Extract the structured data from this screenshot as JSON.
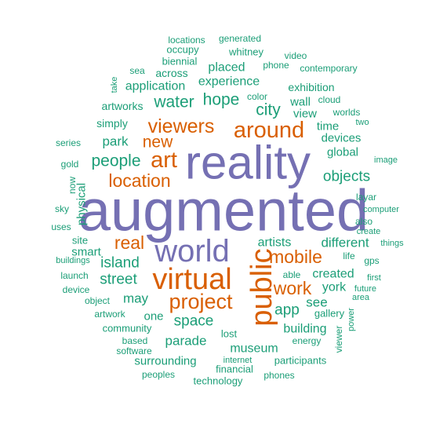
{
  "palette": {
    "purple": "#7570b3",
    "orange": "#d95f02",
    "teal": "#1b9e77"
  },
  "words": [
    {
      "text": "augmented",
      "color": "purple"
    },
    {
      "text": "reality",
      "color": "purple"
    },
    {
      "text": "world",
      "color": "purple"
    },
    {
      "text": "virtual",
      "color": "orange"
    },
    {
      "text": "public",
      "color": "orange"
    },
    {
      "text": "around",
      "color": "orange"
    },
    {
      "text": "viewers",
      "color": "orange"
    },
    {
      "text": "art",
      "color": "orange"
    },
    {
      "text": "new",
      "color": "orange"
    },
    {
      "text": "location",
      "color": "orange"
    },
    {
      "text": "project",
      "color": "orange"
    },
    {
      "text": "mobile",
      "color": "orange"
    },
    {
      "text": "real",
      "color": "orange"
    },
    {
      "text": "work",
      "color": "orange"
    },
    {
      "text": "people",
      "color": "teal"
    },
    {
      "text": "city",
      "color": "teal"
    },
    {
      "text": "hope",
      "color": "teal"
    },
    {
      "text": "water",
      "color": "teal"
    },
    {
      "text": "objects",
      "color": "teal"
    },
    {
      "text": "park",
      "color": "teal"
    },
    {
      "text": "island",
      "color": "teal"
    },
    {
      "text": "street",
      "color": "teal"
    },
    {
      "text": "may",
      "color": "teal"
    },
    {
      "text": "space",
      "color": "teal"
    },
    {
      "text": "app",
      "color": "teal"
    },
    {
      "text": "see",
      "color": "teal"
    },
    {
      "text": "york",
      "color": "teal"
    },
    {
      "text": "created",
      "color": "teal"
    },
    {
      "text": "different",
      "color": "teal"
    },
    {
      "text": "artists",
      "color": "teal"
    },
    {
      "text": "parade",
      "color": "teal"
    },
    {
      "text": "museum",
      "color": "teal"
    },
    {
      "text": "building",
      "color": "teal"
    },
    {
      "text": "experience",
      "color": "teal"
    },
    {
      "text": "placed",
      "color": "teal"
    },
    {
      "text": "application",
      "color": "teal"
    },
    {
      "text": "physical",
      "color": "teal"
    },
    {
      "text": "smart",
      "color": "teal"
    },
    {
      "text": "surrounding",
      "color": "teal"
    },
    {
      "text": "global",
      "color": "teal"
    },
    {
      "text": "devices",
      "color": "teal"
    },
    {
      "text": "view",
      "color": "teal"
    },
    {
      "text": "wall",
      "color": "teal"
    },
    {
      "text": "time",
      "color": "teal"
    },
    {
      "text": "exhibition",
      "color": "teal"
    },
    {
      "text": "one",
      "color": "teal"
    },
    {
      "text": "simply",
      "color": "teal"
    },
    {
      "text": "artworks",
      "color": "teal"
    },
    {
      "text": "across",
      "color": "teal"
    },
    {
      "text": "biennial",
      "color": "teal"
    },
    {
      "text": "occupy",
      "color": "teal"
    },
    {
      "text": "locations",
      "color": "teal"
    },
    {
      "text": "generated",
      "color": "teal"
    },
    {
      "text": "whitney",
      "color": "teal"
    },
    {
      "text": "phone",
      "color": "teal"
    },
    {
      "text": "video",
      "color": "teal"
    },
    {
      "text": "contemporary",
      "color": "teal"
    },
    {
      "text": "sea",
      "color": "teal"
    },
    {
      "text": "take",
      "color": "teal"
    },
    {
      "text": "color",
      "color": "teal"
    },
    {
      "text": "cloud",
      "color": "teal"
    },
    {
      "text": "worlds",
      "color": "teal"
    },
    {
      "text": "two",
      "color": "teal"
    },
    {
      "text": "series",
      "color": "teal"
    },
    {
      "text": "gold",
      "color": "teal"
    },
    {
      "text": "image",
      "color": "teal"
    },
    {
      "text": "now",
      "color": "teal"
    },
    {
      "text": "layar",
      "color": "teal"
    },
    {
      "text": "sky",
      "color": "teal"
    },
    {
      "text": "computer",
      "color": "teal"
    },
    {
      "text": "also",
      "color": "teal"
    },
    {
      "text": "uses",
      "color": "teal"
    },
    {
      "text": "create",
      "color": "teal"
    },
    {
      "text": "site",
      "color": "teal"
    },
    {
      "text": "things",
      "color": "teal"
    },
    {
      "text": "buildings",
      "color": "teal"
    },
    {
      "text": "life",
      "color": "teal"
    },
    {
      "text": "gps",
      "color": "teal"
    },
    {
      "text": "launch",
      "color": "teal"
    },
    {
      "text": "able",
      "color": "teal"
    },
    {
      "text": "first",
      "color": "teal"
    },
    {
      "text": "device",
      "color": "teal"
    },
    {
      "text": "future",
      "color": "teal"
    },
    {
      "text": "object",
      "color": "teal"
    },
    {
      "text": "area",
      "color": "teal"
    },
    {
      "text": "artwork",
      "color": "teal"
    },
    {
      "text": "gallery",
      "color": "teal"
    },
    {
      "text": "community",
      "color": "teal"
    },
    {
      "text": "power",
      "color": "teal"
    },
    {
      "text": "lost",
      "color": "teal"
    },
    {
      "text": "energy",
      "color": "teal"
    },
    {
      "text": "based",
      "color": "teal"
    },
    {
      "text": "software",
      "color": "teal"
    },
    {
      "text": "viewer",
      "color": "teal"
    },
    {
      "text": "internet",
      "color": "teal"
    },
    {
      "text": "participants",
      "color": "teal"
    },
    {
      "text": "financial",
      "color": "teal"
    },
    {
      "text": "peoples",
      "color": "teal"
    },
    {
      "text": "phones",
      "color": "teal"
    },
    {
      "text": "technology",
      "color": "teal"
    }
  ]
}
